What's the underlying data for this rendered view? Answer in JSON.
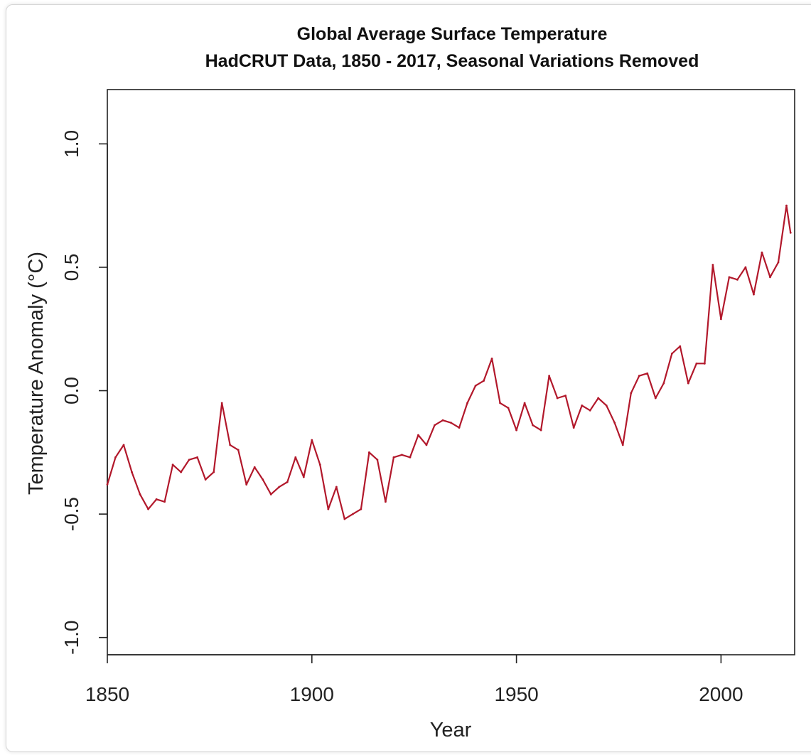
{
  "chart_data": {
    "type": "line",
    "title": "Global Average Surface Temperature",
    "subtitle": "HadCRUT Data, 1850 - 2017, Seasonal Variations Removed",
    "xlabel": "Year",
    "ylabel": "Temperature Anomaly (°C)",
    "xlim": [
      1850,
      2018
    ],
    "ylim": [
      -1.07,
      1.22
    ],
    "xticks": [
      1850,
      1900,
      1950,
      2000
    ],
    "xtick_labels": [
      "1850",
      "1900",
      "1950",
      "2000"
    ],
    "yticks": [
      -1.0,
      -0.5,
      0.0,
      0.5,
      1.0
    ],
    "ytick_labels": [
      "-1.0",
      "-0.5",
      "0.0",
      "0.5",
      "1.0"
    ],
    "grid": false,
    "series": [
      {
        "color": "#b2182b",
        "x": [
          1850,
          1852,
          1854,
          1856,
          1858,
          1860,
          1862,
          1864,
          1866,
          1868,
          1870,
          1872,
          1874,
          1876,
          1878,
          1880,
          1882,
          1884,
          1886,
          1888,
          1890,
          1892,
          1894,
          1896,
          1898,
          1900,
          1902,
          1904,
          1906,
          1908,
          1910,
          1912,
          1914,
          1916,
          1918,
          1920,
          1922,
          1924,
          1926,
          1928,
          1930,
          1932,
          1934,
          1936,
          1938,
          1940,
          1942,
          1944,
          1946,
          1948,
          1950,
          1952,
          1954,
          1956,
          1958,
          1960,
          1962,
          1964,
          1966,
          1968,
          1970,
          1972,
          1974,
          1976,
          1978,
          1980,
          1982,
          1984,
          1986,
          1988,
          1990,
          1992,
          1994,
          1996,
          1998,
          2000,
          2002,
          2004,
          2006,
          2008,
          2010,
          2012,
          2014,
          2016,
          2017
        ],
        "values": [
          -0.38,
          -0.27,
          -0.22,
          -0.33,
          -0.42,
          -0.48,
          -0.44,
          -0.45,
          -0.3,
          -0.33,
          -0.28,
          -0.27,
          -0.36,
          -0.33,
          -0.05,
          -0.22,
          -0.24,
          -0.38,
          -0.31,
          -0.36,
          -0.42,
          -0.39,
          -0.37,
          -0.27,
          -0.35,
          -0.2,
          -0.3,
          -0.48,
          -0.39,
          -0.52,
          -0.5,
          -0.48,
          -0.25,
          -0.28,
          -0.45,
          -0.27,
          -0.26,
          -0.27,
          -0.18,
          -0.22,
          -0.14,
          -0.12,
          -0.13,
          -0.15,
          -0.05,
          0.02,
          0.04,
          0.13,
          -0.05,
          -0.07,
          -0.16,
          -0.05,
          -0.14,
          -0.16,
          0.06,
          -0.03,
          -0.02,
          -0.15,
          -0.06,
          -0.08,
          -0.03,
          -0.06,
          -0.13,
          -0.22,
          -0.01,
          0.06,
          0.07,
          -0.03,
          0.03,
          0.15,
          0.18,
          0.03,
          0.11,
          0.11,
          0.51,
          0.29,
          0.46,
          0.45,
          0.5,
          0.39,
          0.56,
          0.46,
          0.52,
          0.75,
          0.64
        ]
      }
    ]
  }
}
